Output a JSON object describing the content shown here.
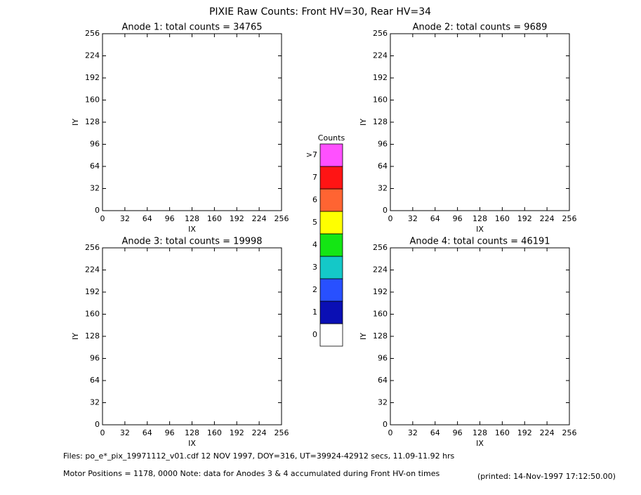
{
  "title": "PIXIE Raw Counts:  Front HV=30, Rear HV=34",
  "chart_data": [
    {
      "type": "heatmap",
      "title": "Anode 1: total counts = 34765",
      "xlabel": "IX",
      "ylabel": "IY",
      "xlim": [
        0,
        256
      ],
      "ylim": [
        0,
        256
      ],
      "xticks": [
        0,
        32,
        64,
        96,
        128,
        160,
        192,
        224,
        256
      ],
      "yticks": [
        0,
        32,
        64,
        96,
        128,
        160,
        192,
        224,
        256
      ]
    },
    {
      "type": "heatmap",
      "title": "Anode 2: total counts = 9689",
      "xlabel": "IX",
      "ylabel": "IY",
      "xlim": [
        0,
        256
      ],
      "ylim": [
        0,
        256
      ],
      "xticks": [
        0,
        32,
        64,
        96,
        128,
        160,
        192,
        224,
        256
      ],
      "yticks": [
        0,
        32,
        64,
        96,
        128,
        160,
        192,
        224,
        256
      ]
    },
    {
      "type": "heatmap",
      "title": "Anode 3: total counts = 19998",
      "xlabel": "IX",
      "ylabel": "IY",
      "xlim": [
        0,
        256
      ],
      "ylim": [
        0,
        256
      ],
      "xticks": [
        0,
        32,
        64,
        96,
        128,
        160,
        192,
        224,
        256
      ],
      "yticks": [
        0,
        32,
        64,
        96,
        128,
        160,
        192,
        224,
        256
      ]
    },
    {
      "type": "heatmap",
      "title": "Anode 4: total counts = 46191",
      "xlabel": "IX",
      "ylabel": "IY",
      "xlim": [
        0,
        256
      ],
      "ylim": [
        0,
        256
      ],
      "xticks": [
        0,
        32,
        64,
        96,
        128,
        160,
        192,
        224,
        256
      ],
      "yticks": [
        0,
        32,
        64,
        96,
        128,
        160,
        192,
        224,
        256
      ]
    }
  ],
  "colorbar": {
    "title": "Counts",
    "ticks": [
      0,
      1,
      2,
      3,
      4,
      5,
      6,
      7
    ],
    "overflow_label": ">7",
    "colors": [
      "#ffffff",
      "#0a0fb4",
      "#2850ff",
      "#14c8c8",
      "#14e614",
      "#ffff00",
      "#ff6432",
      "#ff1414",
      "#ff50ff"
    ]
  },
  "footer": {
    "files": "Files: po_e*_pix_19971112_v01.cdf    12 NOV 1997, DOY=316, UT=39924-42912 secs, 11.09-11.92 hrs",
    "motor": "Motor Positions = 1178, 0000    Note: data for Anodes 3 & 4 accumulated during Front HV-on times",
    "printed": "(printed: 14-Nov-1997 17:12:50.00)"
  }
}
